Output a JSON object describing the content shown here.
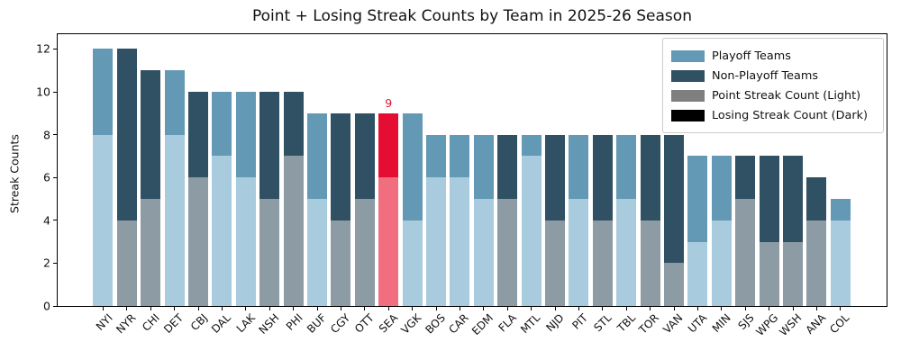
{
  "chart_data": {
    "type": "bar",
    "stacked": true,
    "title": "Point + Losing Streak Counts by Team in 2025-26 Season",
    "xlabel": "",
    "ylabel": "Streak Counts",
    "y_ticks": [
      0,
      2,
      4,
      6,
      8,
      10,
      12
    ],
    "ylim": [
      0,
      12.7
    ],
    "grid": false,
    "legend_position": "upper right",
    "categories": [
      "NYI",
      "NYR",
      "CHI",
      "DET",
      "CBJ",
      "DAL",
      "LAK",
      "NSH",
      "PHI",
      "BUF",
      "CGY",
      "OTT",
      "SEA",
      "VGK",
      "BOS",
      "CAR",
      "EDM",
      "FLA",
      "MTL",
      "NJD",
      "PIT",
      "STL",
      "TBL",
      "TOR",
      "VAN",
      "UTA",
      "MIN",
      "SJS",
      "WPG",
      "WSH",
      "ANA",
      "COL"
    ],
    "series": [
      {
        "name": "Point Streak Count",
        "values": [
          8,
          4,
          5,
          8,
          6,
          7,
          6,
          5,
          7,
          5,
          4,
          5,
          6,
          4,
          6,
          6,
          5,
          5,
          7,
          4,
          5,
          4,
          5,
          4,
          2,
          3,
          4,
          5,
          3,
          3,
          4,
          4
        ]
      },
      {
        "name": "Losing Streak Count",
        "values": [
          4,
          8,
          6,
          3,
          4,
          3,
          4,
          5,
          3,
          4,
          5,
          4,
          3,
          5,
          2,
          2,
          3,
          3,
          1,
          4,
          3,
          4,
          3,
          4,
          6,
          4,
          3,
          2,
          4,
          4,
          2,
          1
        ]
      }
    ],
    "totals": [
      12,
      12,
      11,
      11,
      10,
      10,
      10,
      10,
      10,
      9,
      9,
      9,
      9,
      9,
      8,
      8,
      8,
      8,
      8,
      8,
      8,
      8,
      8,
      8,
      8,
      7,
      7,
      7,
      7,
      7,
      6,
      5
    ],
    "team_status": [
      "playoff",
      "non_playoff",
      "non_playoff",
      "playoff",
      "non_playoff",
      "playoff",
      "playoff",
      "non_playoff",
      "non_playoff",
      "playoff",
      "non_playoff",
      "non_playoff",
      "highlight",
      "playoff",
      "playoff",
      "playoff",
      "playoff",
      "non_playoff",
      "playoff",
      "non_playoff",
      "playoff",
      "non_playoff",
      "playoff",
      "non_playoff",
      "non_playoff",
      "playoff",
      "playoff",
      "non_playoff",
      "non_playoff",
      "non_playoff",
      "non_playoff",
      "playoff"
    ],
    "highlighted_team": "SEA",
    "annotation": {
      "team": "SEA",
      "text": "9",
      "color": "#e0142f"
    },
    "legend": [
      {
        "label": "Playoff Teams",
        "color": "#6399b4"
      },
      {
        "label": "Non-Playoff Teams",
        "color": "#305064"
      },
      {
        "label": "Point Streak Count (Light)",
        "color": "#7f7f7f"
      },
      {
        "label": "Losing Streak Count (Dark)",
        "color": "#000000"
      }
    ],
    "colors": {
      "playoff_light": "#a9cbde",
      "playoff_dark": "#6399b4",
      "non_playoff_light": "#8c9ba4",
      "non_playoff_dark": "#305064",
      "highlight_light": "#f06e7e",
      "highlight_dark": "#e60d32"
    }
  }
}
